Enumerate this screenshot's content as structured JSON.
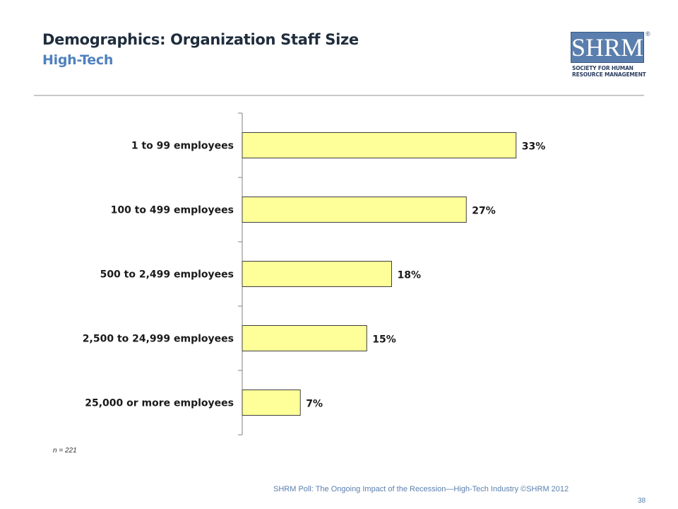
{
  "header": {
    "title": "Demographics: Organization Staff Size",
    "subtitle": "High-Tech"
  },
  "logo": {
    "name": "SHRM",
    "reg": "®",
    "tagline": "SOCIETY FOR HUMAN RESOURCE MANAGEMENT"
  },
  "colors": {
    "bar_fill": "#ffff99",
    "bar_stroke": "#404040",
    "title": "#1f2d3d",
    "subtitle": "#4f81bd",
    "footer": "#5a7fae"
  },
  "chart_data": {
    "type": "bar",
    "orientation": "horizontal",
    "categories": [
      "1 to 99 employees",
      "100 to 499 employees",
      "500 to 2,499 employees",
      "2,500 to 24,999 employees",
      "25,000 or more employees"
    ],
    "values": [
      33,
      27,
      18,
      15,
      7
    ],
    "value_labels": [
      "33%",
      "27%",
      "18%",
      "15%",
      "7%"
    ],
    "unit": "%",
    "xlim": [
      0,
      50
    ],
    "grid": false,
    "legend": "none"
  },
  "note": "n = 221",
  "footer": {
    "text": "SHRM Poll: The Ongoing Impact of the Recession—High-Tech Industry ©SHRM 2012",
    "page": "38"
  }
}
